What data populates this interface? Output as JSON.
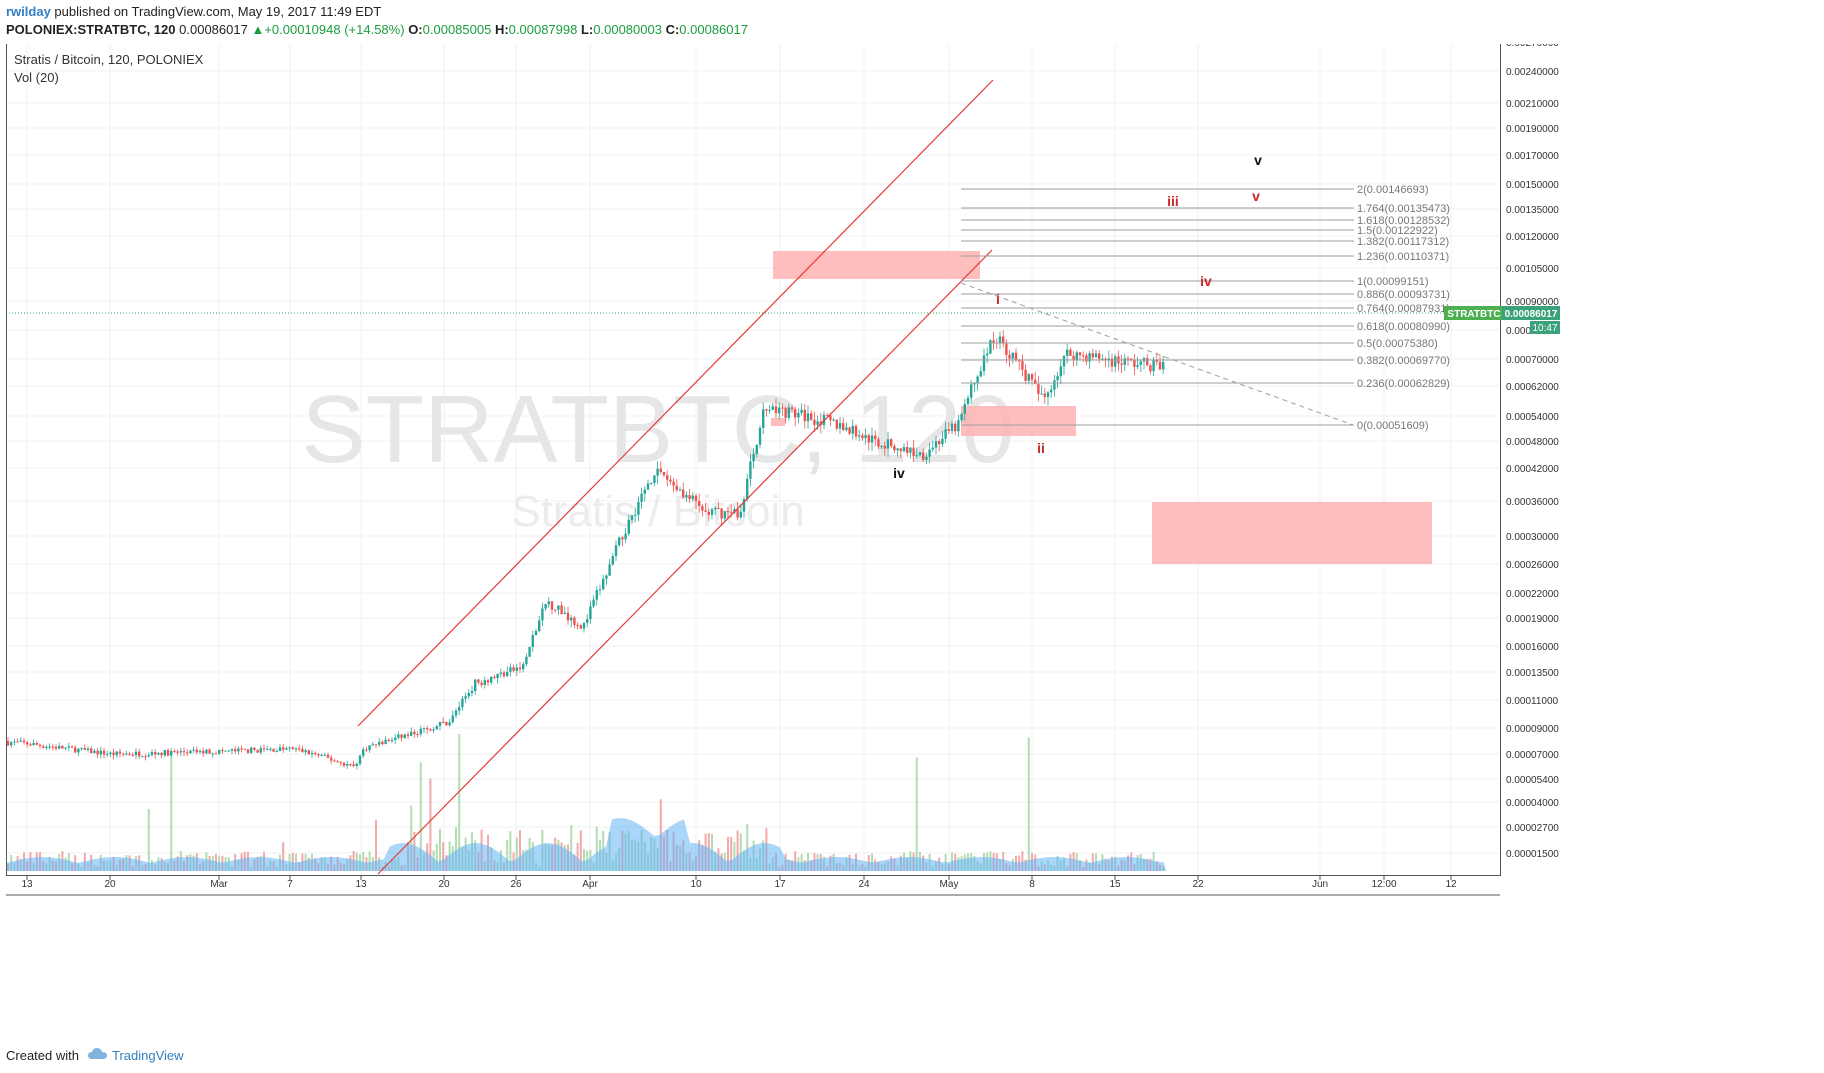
{
  "header": {
    "user": "rwilday",
    "published_text": "published on TradingView.com, May 19, 2017 11:49 EDT",
    "symbol_line": "POLONIEX:STRATBTC, 120",
    "last": "0.00086017",
    "change": "+0.00010948 (+14.58%)",
    "o_label": "O:",
    "o_val": "0.00085005",
    "h_label": "H:",
    "h_val": "0.00087998",
    "l_label": "L:",
    "l_val": "0.00080003",
    "c_label": "C:",
    "c_val": "0.00086017"
  },
  "legend": {
    "title": "Stratis / Bitcoin, 120, POLONIEX",
    "volume": "Vol (20)"
  },
  "watermark": {
    "main": "STRATBTC, 120",
    "sub": "Stratis / Bitcoin"
  },
  "price_tag": {
    "symbol": "STRATBTC",
    "price": "0.00086017",
    "countdown": "10:47"
  },
  "footer": {
    "created": "Created with",
    "brand": "TradingView"
  },
  "colors": {
    "up": "#26a69a",
    "down": "#ef5350",
    "channel": "#e53935",
    "zone": "#ffb3b3",
    "fib": "#9e9e9e",
    "wave_red": "#c62828",
    "volume": "#64b5f6"
  },
  "chart_data": {
    "type": "candlestick",
    "title": "Stratis / Bitcoin, 120, POLONIEX",
    "y_ticks": [
      "0.00270000",
      "0.00240000",
      "0.00210000",
      "0.00190000",
      "0.00170000",
      "0.00150000",
      "0.00135000",
      "0.00120000",
      "0.00105000",
      "0.00090000",
      "0.00080000",
      "0.00070000",
      "0.00062000",
      "0.00054000",
      "0.00048000",
      "0.00042000",
      "0.00036000",
      "0.00030000",
      "0.00026000",
      "0.00022000",
      "0.00019000",
      "0.00016000",
      "0.00013500",
      "0.00011000",
      "0.00009000",
      "0.00007000",
      "0.00005400",
      "0.00004000",
      "0.00002700",
      "0.00001500"
    ],
    "x_ticks": [
      "13",
      "20",
      "Mar",
      "7",
      "13",
      "20",
      "26",
      "Apr",
      "10",
      "17",
      "24",
      "May",
      "8",
      "15",
      "22",
      "Jun",
      "12:00",
      "12"
    ],
    "fib_levels": [
      {
        "label": "2(0.00146693)",
        "price": 0.00146693
      },
      {
        "label": "1.764(0.00135473)",
        "price": 0.00135473
      },
      {
        "label": "1.618(0.00128532)",
        "price": 0.00128532
      },
      {
        "label": "1.5(0.00122922)",
        "price": 0.00122922
      },
      {
        "label": "1.382(0.00117312)",
        "price": 0.00117312
      },
      {
        "label": "1.236(0.00110371)",
        "price": 0.00110371
      },
      {
        "label": "1(0.00099151)",
        "price": 0.00099151
      },
      {
        "label": "0.886(0.00093731)",
        "price": 0.00093731
      },
      {
        "label": "0.764(0.00087931)",
        "price": 0.00087931
      },
      {
        "label": "0.618(0.00080990)",
        "price": 0.0008099
      },
      {
        "label": "0.5(0.00075380)",
        "price": 0.0007538
      },
      {
        "label": "0.382(0.00069770)",
        "price": 0.0006977
      },
      {
        "label": "0.236(0.00062829)",
        "price": 0.00062829
      },
      {
        "label": "0(0.00051609)",
        "price": 0.00051609
      }
    ],
    "wave_labels": [
      {
        "text": "i",
        "color": "#c62828"
      },
      {
        "text": "ii",
        "color": "#c62828"
      },
      {
        "text": "iii",
        "color": "#c62828"
      },
      {
        "text": "iv",
        "color": "#c62828"
      },
      {
        "text": "v",
        "color": "#c62828"
      },
      {
        "text": "iv",
        "color": "#111111"
      },
      {
        "text": "v",
        "color": "#111111"
      }
    ],
    "price_path": [
      {
        "date": "Feb 10",
        "close": 8e-05
      },
      {
        "date": "Feb 13",
        "close": 7.8e-05
      },
      {
        "date": "Feb 20",
        "close": 7e-05
      },
      {
        "date": "Mar 1",
        "close": 7.2e-05
      },
      {
        "date": "Mar 7",
        "close": 7.4e-05
      },
      {
        "date": "Mar 12",
        "close": 6.2e-05
      },
      {
        "date": "Mar 13",
        "close": 7.5e-05
      },
      {
        "date": "Mar 20",
        "close": 9.5e-05
      },
      {
        "date": "Mar 22",
        "close": 0.000125
      },
      {
        "date": "Mar 26",
        "close": 0.00014
      },
      {
        "date": "Mar 28",
        "close": 0.00021
      },
      {
        "date": "Mar 31",
        "close": 0.00018
      },
      {
        "date": "Apr 2",
        "close": 0.00025
      },
      {
        "date": "Apr 6",
        "close": 0.00042
      },
      {
        "date": "Apr 10",
        "close": 0.00034
      },
      {
        "date": "Apr 13",
        "close": 0.00034
      },
      {
        "date": "Apr 15",
        "close": 0.00056
      },
      {
        "date": "Apr 17",
        "close": 0.00055
      },
      {
        "date": "Apr 21",
        "close": 0.00052
      },
      {
        "date": "Apr 24",
        "close": 0.00048
      },
      {
        "date": "Apr 28",
        "close": 0.00045
      },
      {
        "date": "May 1",
        "close": 0.00052
      },
      {
        "date": "May 4",
        "close": 0.00078
      },
      {
        "date": "May 8",
        "close": 0.00058
      },
      {
        "date": "May 10",
        "close": 0.00072
      },
      {
        "date": "May 15",
        "close": 0.00069
      },
      {
        "date": "May 18",
        "close": 0.00068
      },
      {
        "date": "May 19",
        "close": 0.00086017
      }
    ]
  }
}
